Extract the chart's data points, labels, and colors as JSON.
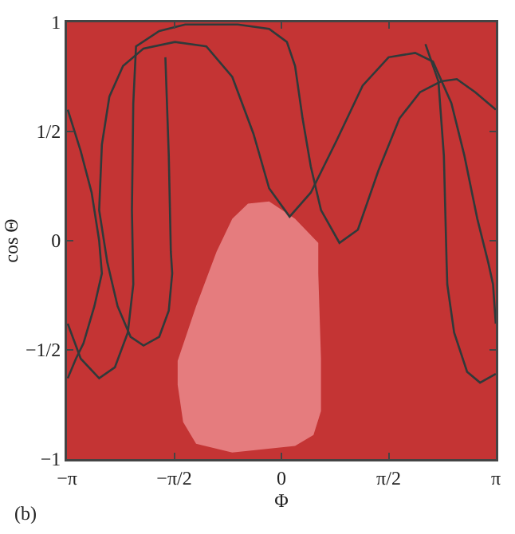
{
  "chart_data": {
    "type": "line",
    "xlabel": "Φ",
    "ylabel": "cos Θ",
    "annotations": [
      "(b)"
    ],
    "xlim": [
      -3.1416,
      3.1416
    ],
    "ylim": [
      -1,
      1
    ],
    "xticks": [
      {
        "value": -3.1416,
        "label": "−π"
      },
      {
        "value": -1.5708,
        "label": "−π/2"
      },
      0,
      {
        "value": 1.5708,
        "label": "π/2"
      },
      {
        "value": 3.1416,
        "label": "π"
      }
    ],
    "yticks": [
      -1,
      {
        "value": -0.5,
        "label": "−1/2"
      },
      0,
      {
        "value": 0.5,
        "label": "1/2"
      },
      1
    ],
    "line_style": "solid",
    "marker": "none",
    "bands": [
      {
        "axis": "y",
        "from": -1,
        "to": 1,
        "color": "#c43434"
      }
    ],
    "series": [
      {
        "type": "area",
        "color": "#e57c7e",
        "x": [
          -0.49,
          -0.18,
          0.2,
          0.54,
          0.54,
          0.58,
          0.58,
          0.47,
          0.2,
          -0.72,
          -1.25,
          -1.44,
          -1.52,
          -1.52,
          -1.25,
          -0.95,
          -0.72,
          -0.49
        ],
        "values": [
          0.17,
          0.18,
          0.1,
          -0.01,
          -0.15,
          -0.54,
          -0.78,
          -0.89,
          -0.94,
          -0.97,
          -0.93,
          -0.83,
          -0.66,
          -0.55,
          -0.3,
          -0.05,
          0.1,
          0.17
        ]
      },
      {
        "color": "#2f3a3a",
        "x": [
          -3.13,
          -2.94,
          -2.67,
          -2.44,
          -2.25,
          -2.17,
          -2.19,
          -2.17,
          -2.13,
          -1.79,
          -1.41,
          -0.64,
          -0.18,
          0.08,
          0.2,
          0.31,
          0.43,
          0.58,
          0.85,
          1.12,
          1.42,
          1.73,
          2.03,
          2.34,
          2.57,
          2.84,
          3.14
        ],
        "values": [
          -0.38,
          -0.54,
          -0.63,
          -0.58,
          -0.42,
          -0.2,
          0.14,
          0.63,
          0.89,
          0.96,
          0.99,
          0.99,
          0.97,
          0.91,
          0.8,
          0.56,
          0.34,
          0.14,
          -0.01,
          0.05,
          0.32,
          0.56,
          0.68,
          0.73,
          0.74,
          0.68,
          0.6
        ]
      },
      {
        "color": "#2f3a3a",
        "x": [
          -1.7,
          -1.65,
          -1.62,
          -1.6,
          -1.65,
          -1.79,
          -2.02,
          -2.21,
          -2.4,
          -2.55,
          -2.67,
          -2.63,
          -2.52,
          -2.32,
          -2.02,
          -1.56,
          -1.1,
          -0.72,
          -0.41,
          -0.18,
          0.12,
          0.43,
          0.81,
          1.19,
          1.57,
          1.96,
          2.22,
          2.49,
          2.68,
          2.87,
          3.03,
          3.1,
          3.14
        ],
        "values": [
          0.84,
          0.39,
          -0.05,
          -0.15,
          -0.32,
          -0.44,
          -0.48,
          -0.44,
          -0.3,
          -0.1,
          0.14,
          0.44,
          0.66,
          0.8,
          0.88,
          0.91,
          0.89,
          0.75,
          0.49,
          0.24,
          0.11,
          0.22,
          0.46,
          0.71,
          0.84,
          0.86,
          0.82,
          0.63,
          0.39,
          0.1,
          -0.1,
          -0.2,
          -0.38
        ]
      },
      {
        "color": "#2f3a3a",
        "x": [
          -3.13,
          -2.94,
          -2.78,
          -2.67,
          -2.63,
          -2.74,
          -2.9,
          -3.01,
          -3.13
        ],
        "values": [
          0.6,
          0.41,
          0.22,
          0.0,
          -0.15,
          -0.3,
          -0.47,
          -0.54,
          -0.63
        ]
      },
      {
        "color": "#2f3a3a",
        "x": [
          2.11,
          2.3,
          2.38,
          2.42,
          2.43,
          2.53,
          2.72,
          2.91,
          3.14
        ],
        "values": [
          0.9,
          0.73,
          0.39,
          -0.1,
          -0.2,
          -0.42,
          -0.6,
          -0.65,
          -0.61
        ]
      }
    ]
  }
}
